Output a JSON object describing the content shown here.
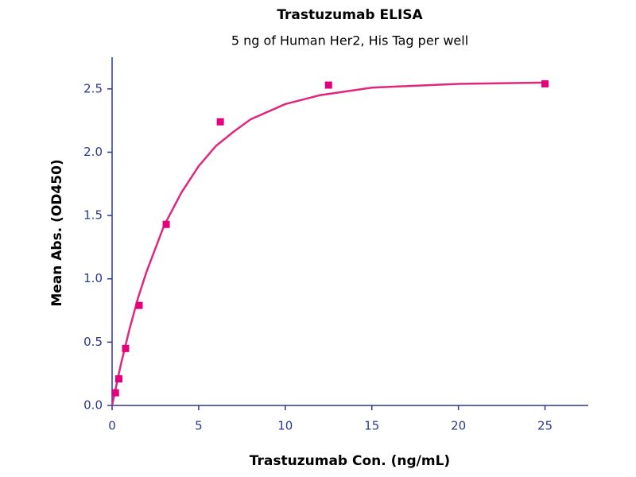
{
  "chart_data": {
    "type": "scatter",
    "title": "Trastuzumab ELISA",
    "subtitle": "5 ng of Human Her2, His Tag per well",
    "x_label": "Trastuzumab Con. (ng/mL)",
    "y_label": "Mean Abs. (OD450)",
    "xlim": [
      0,
      27.5
    ],
    "ylim": [
      0,
      2.75
    ],
    "xticks": [
      0,
      5,
      10,
      15,
      20,
      25
    ],
    "yticks": [
      {
        "value": 0,
        "label": "0.0"
      },
      0.5,
      {
        "value": 1,
        "label": "1.0"
      },
      1.5,
      {
        "value": 2,
        "label": "2.0"
      },
      2.5
    ],
    "axis_color": "#2b3990",
    "series": [
      {
        "type": "scatter",
        "color": "#e4007c",
        "x": [
          0.195,
          0.39,
          0.78,
          1.56,
          3.125,
          6.25,
          12.5,
          25
        ],
        "values": [
          0.1,
          0.21,
          0.45,
          0.79,
          1.43,
          2.24,
          2.53,
          2.54
        ]
      },
      {
        "type": "line",
        "color": "#e0267f",
        "x": [
          0,
          0.5,
          1,
          1.5,
          2,
          3,
          4,
          5,
          6,
          7,
          8,
          10,
          12,
          15,
          20,
          25
        ],
        "values": [
          0,
          0.32,
          0.6,
          0.85,
          1.06,
          1.42,
          1.68,
          1.89,
          2.05,
          2.16,
          2.26,
          2.38,
          2.45,
          2.51,
          2.54,
          2.55
        ]
      }
    ]
  }
}
